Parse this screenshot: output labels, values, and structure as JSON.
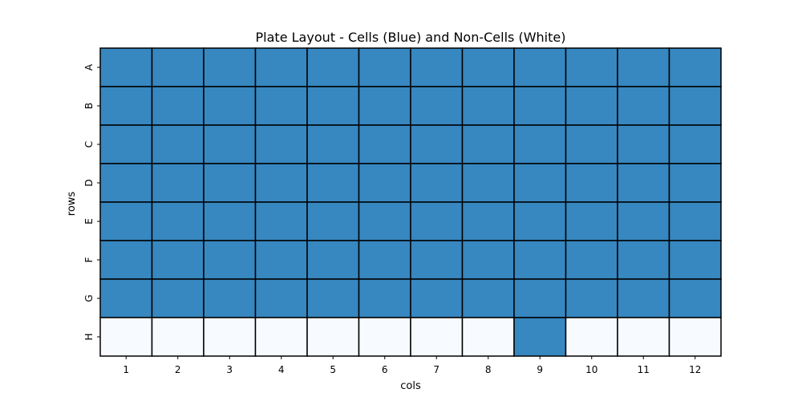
{
  "chart_data": {
    "type": "heatmap",
    "title": "Plate Layout - Cells (Blue) and Non-Cells (White)",
    "xlabel": "cols",
    "ylabel": "rows",
    "rows": [
      "A",
      "B",
      "C",
      "D",
      "E",
      "F",
      "G",
      "H"
    ],
    "cols": [
      "1",
      "2",
      "3",
      "4",
      "5",
      "6",
      "7",
      "8",
      "9",
      "10",
      "11",
      "12"
    ],
    "values": [
      [
        1,
        1,
        1,
        1,
        1,
        1,
        1,
        1,
        1,
        1,
        1,
        1
      ],
      [
        1,
        1,
        1,
        1,
        1,
        1,
        1,
        1,
        1,
        1,
        1,
        1
      ],
      [
        1,
        1,
        1,
        1,
        1,
        1,
        1,
        1,
        1,
        1,
        1,
        1
      ],
      [
        1,
        1,
        1,
        1,
        1,
        1,
        1,
        1,
        1,
        1,
        1,
        1
      ],
      [
        1,
        1,
        1,
        1,
        1,
        1,
        1,
        1,
        1,
        1,
        1,
        1
      ],
      [
        1,
        1,
        1,
        1,
        1,
        1,
        1,
        1,
        1,
        1,
        1,
        1
      ],
      [
        1,
        1,
        1,
        1,
        1,
        1,
        1,
        1,
        1,
        1,
        1,
        1
      ],
      [
        0,
        0,
        0,
        0,
        0,
        0,
        0,
        0,
        1,
        0,
        0,
        0
      ]
    ],
    "colors": {
      "cell": "#3787c0",
      "non_cell": "#f7fbff",
      "grid": "#000000"
    },
    "legend": "none"
  }
}
